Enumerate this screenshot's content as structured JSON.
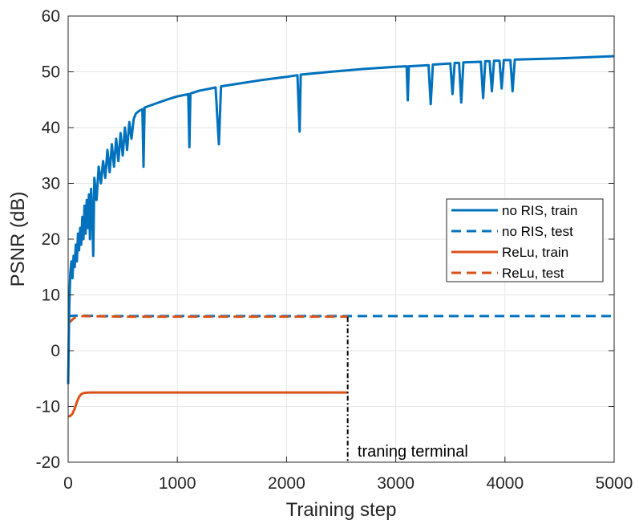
{
  "chart_data": {
    "type": "line",
    "title": "",
    "xlabel": "Training step",
    "ylabel": "PSNR (dB)",
    "xlim": [
      0,
      5000
    ],
    "ylim": [
      -20,
      60
    ],
    "xticks": [
      0,
      1000,
      2000,
      3000,
      4000,
      5000
    ],
    "xtick_labels": [
      "0",
      "1000",
      "2000",
      "3000",
      "4000",
      "5000"
    ],
    "yticks": [
      -20,
      -10,
      0,
      10,
      20,
      30,
      40,
      50,
      60
    ],
    "ytick_labels": [
      "-20",
      "-10",
      "0",
      "10",
      "20",
      "30",
      "40",
      "50",
      "60"
    ],
    "grid": true,
    "legend_position": "right",
    "series": [
      {
        "name": "no RIS, train",
        "color": "#0072BD",
        "style": "solid",
        "points": [
          [
            0,
            -6
          ],
          [
            10,
            8
          ],
          [
            20,
            14
          ],
          [
            30,
            16
          ],
          [
            40,
            13
          ],
          [
            50,
            17
          ],
          [
            60,
            15
          ],
          [
            70,
            19
          ],
          [
            80,
            16
          ],
          [
            90,
            21
          ],
          [
            100,
            18
          ],
          [
            110,
            22
          ],
          [
            120,
            19
          ],
          [
            130,
            24
          ],
          [
            140,
            20
          ],
          [
            150,
            26
          ],
          [
            160,
            21
          ],
          [
            170,
            27
          ],
          [
            180,
            22
          ],
          [
            190,
            28
          ],
          [
            200,
            20
          ],
          [
            210,
            29
          ],
          [
            220,
            25
          ],
          [
            230,
            17
          ],
          [
            240,
            31
          ],
          [
            260,
            27
          ],
          [
            280,
            33
          ],
          [
            300,
            30
          ],
          [
            320,
            34
          ],
          [
            340,
            31
          ],
          [
            360,
            36
          ],
          [
            380,
            32
          ],
          [
            400,
            37
          ],
          [
            420,
            33
          ],
          [
            440,
            38
          ],
          [
            460,
            34
          ],
          [
            480,
            39
          ],
          [
            500,
            35
          ],
          [
            520,
            40
          ],
          [
            540,
            36
          ],
          [
            560,
            41
          ],
          [
            580,
            38
          ],
          [
            600,
            41.5
          ],
          [
            620,
            42.5
          ],
          [
            650,
            43
          ],
          [
            680,
            43.3
          ],
          [
            690,
            33
          ],
          [
            700,
            43.6
          ],
          [
            800,
            44.3
          ],
          [
            900,
            45
          ],
          [
            1000,
            45.6
          ],
          [
            1100,
            46
          ],
          [
            1110,
            36.5
          ],
          [
            1120,
            46.1
          ],
          [
            1200,
            46.6
          ],
          [
            1350,
            47.2
          ],
          [
            1380,
            37
          ],
          [
            1400,
            47.4
          ],
          [
            1600,
            48
          ],
          [
            1800,
            48.6
          ],
          [
            2000,
            49.1
          ],
          [
            2100,
            49.4
          ],
          [
            2120,
            39.3
          ],
          [
            2130,
            49.5
          ],
          [
            2400,
            50
          ],
          [
            2700,
            50.5
          ],
          [
            3000,
            50.9
          ],
          [
            3100,
            51
          ],
          [
            3110,
            44.9
          ],
          [
            3120,
            51
          ],
          [
            3300,
            51.2
          ],
          [
            3320,
            44.2
          ],
          [
            3340,
            51.3
          ],
          [
            3500,
            51.5
          ],
          [
            3520,
            46
          ],
          [
            3540,
            51.6
          ],
          [
            3580,
            51.6
          ],
          [
            3600,
            44.5
          ],
          [
            3620,
            51.7
          ],
          [
            3780,
            51.8
          ],
          [
            3800,
            45.3
          ],
          [
            3820,
            51.9
          ],
          [
            3860,
            51.9
          ],
          [
            3880,
            46.5
          ],
          [
            3900,
            52
          ],
          [
            3950,
            52
          ],
          [
            3970,
            47
          ],
          [
            3990,
            52.1
          ],
          [
            4050,
            52.1
          ],
          [
            4070,
            46.5
          ],
          [
            4090,
            52.2
          ],
          [
            4500,
            52.4
          ],
          [
            5000,
            52.8
          ]
        ]
      },
      {
        "name": "no RIS, test",
        "color": "#0072BD",
        "style": "dashed",
        "points": [
          [
            0,
            6.2
          ],
          [
            100,
            6.3
          ],
          [
            300,
            6.2
          ],
          [
            1000,
            6.2
          ],
          [
            3000,
            6.2
          ],
          [
            5000,
            6.2
          ]
        ]
      },
      {
        "name": "ReLu, train",
        "color": "#D95319",
        "style": "solid",
        "points": [
          [
            0,
            -11.8
          ],
          [
            20,
            -11.7
          ],
          [
            40,
            -11.3
          ],
          [
            60,
            -10.4
          ],
          [
            80,
            -9.2
          ],
          [
            100,
            -8.3
          ],
          [
            120,
            -7.8
          ],
          [
            140,
            -7.6
          ],
          [
            200,
            -7.5
          ],
          [
            1000,
            -7.5
          ],
          [
            2560,
            -7.5
          ]
        ]
      },
      {
        "name": "ReLu, test",
        "color": "#D95319",
        "style": "dashed",
        "points": [
          [
            0,
            5
          ],
          [
            20,
            5.2
          ],
          [
            40,
            5.6
          ],
          [
            60,
            5.9
          ],
          [
            80,
            6.1
          ],
          [
            100,
            6.2
          ],
          [
            500,
            6.1
          ],
          [
            1000,
            6.1
          ],
          [
            2560,
            6.1
          ]
        ]
      }
    ],
    "annotations": [
      {
        "text": "traning terminal",
        "x": 2650,
        "y": -18
      }
    ],
    "vline": {
      "x": 2560,
      "y_from": 6,
      "y_to": -20,
      "style": "dash-dot",
      "color": "#000000"
    }
  }
}
